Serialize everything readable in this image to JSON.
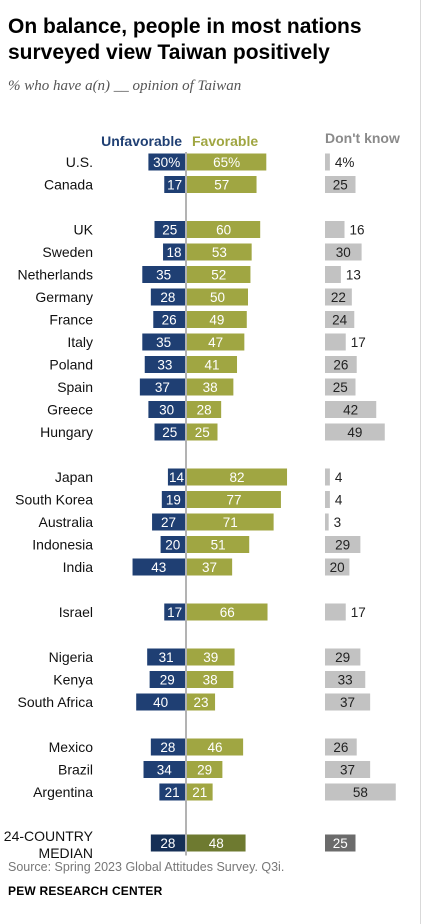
{
  "title": "On balance, people in most nations surveyed view Taiwan positively",
  "subtitle": "% who have a(n) __ opinion of Taiwan",
  "source": "Source: Spring 2023 Global Attitudes Survey. Q3i.",
  "credit": "PEW RESEARCH CENTER",
  "colors": {
    "unfavorable": "#1f3f73",
    "favorable": "#a0a642",
    "dont_know": "#c2c2c2",
    "median_unfavorable": "#152f56",
    "median_favorable": "#6e7a30",
    "median_dont_know": "#6b6b6b"
  },
  "chart_data": {
    "type": "bar",
    "series": [
      {
        "name": "Unfavorable",
        "values": [
          30,
          17,
          25,
          18,
          35,
          28,
          26,
          35,
          33,
          37,
          30,
          25,
          14,
          19,
          27,
          20,
          43,
          17,
          31,
          29,
          40,
          28,
          34,
          21,
          28
        ]
      },
      {
        "name": "Favorable",
        "values": [
          65,
          57,
          60,
          53,
          52,
          50,
          49,
          47,
          41,
          38,
          28,
          25,
          82,
          77,
          71,
          51,
          37,
          66,
          39,
          38,
          23,
          46,
          29,
          21,
          48
        ]
      },
      {
        "name": "Don't know",
        "values": [
          4,
          25,
          16,
          30,
          13,
          22,
          24,
          17,
          26,
          25,
          42,
          49,
          4,
          4,
          3,
          29,
          20,
          17,
          29,
          33,
          37,
          26,
          37,
          58,
          25
        ]
      }
    ],
    "rows": [
      {
        "label": "U.S.",
        "unf": "30%",
        "fav": "65%",
        "dk": "4%",
        "group": 0
      },
      {
        "label": "Canada",
        "unf": "17",
        "fav": "57",
        "dk": "25",
        "group": 0
      },
      {
        "label": "UK",
        "unf": "25",
        "fav": "60",
        "dk": "16",
        "group": 1
      },
      {
        "label": "Sweden",
        "unf": "18",
        "fav": "53",
        "dk": "30",
        "group": 1
      },
      {
        "label": "Netherlands",
        "unf": "35",
        "fav": "52",
        "dk": "13",
        "group": 1
      },
      {
        "label": "Germany",
        "unf": "28",
        "fav": "50",
        "dk": "22",
        "group": 1
      },
      {
        "label": "France",
        "unf": "26",
        "fav": "49",
        "dk": "24",
        "group": 1
      },
      {
        "label": "Italy",
        "unf": "35",
        "fav": "47",
        "dk": "17",
        "group": 1
      },
      {
        "label": "Poland",
        "unf": "33",
        "fav": "41",
        "dk": "26",
        "group": 1
      },
      {
        "label": "Spain",
        "unf": "37",
        "fav": "38",
        "dk": "25",
        "group": 1
      },
      {
        "label": "Greece",
        "unf": "30",
        "fav": "28",
        "dk": "42",
        "group": 1
      },
      {
        "label": "Hungary",
        "unf": "25",
        "fav": "25",
        "dk": "49",
        "group": 1
      },
      {
        "label": "Japan",
        "unf": "14",
        "fav": "82",
        "dk": "4",
        "group": 2
      },
      {
        "label": "South Korea",
        "unf": "19",
        "fav": "77",
        "dk": "4",
        "group": 2
      },
      {
        "label": "Australia",
        "unf": "27",
        "fav": "71",
        "dk": "3",
        "group": 2
      },
      {
        "label": "Indonesia",
        "unf": "20",
        "fav": "51",
        "dk": "29",
        "group": 2
      },
      {
        "label": "India",
        "unf": "43",
        "fav": "37",
        "dk": "20",
        "group": 2
      },
      {
        "label": "Israel",
        "unf": "17",
        "fav": "66",
        "dk": "17",
        "group": 3
      },
      {
        "label": "Nigeria",
        "unf": "31",
        "fav": "39",
        "dk": "29",
        "group": 4
      },
      {
        "label": "Kenya",
        "unf": "29",
        "fav": "38",
        "dk": "33",
        "group": 4
      },
      {
        "label": "South Africa",
        "unf": "40",
        "fav": "23",
        "dk": "37",
        "group": 4
      },
      {
        "label": "Mexico",
        "unf": "28",
        "fav": "46",
        "dk": "26",
        "group": 5
      },
      {
        "label": "Brazil",
        "unf": "34",
        "fav": "29",
        "dk": "37",
        "group": 5
      },
      {
        "label": "Argentina",
        "unf": "21",
        "fav": "21",
        "dk": "58",
        "group": 5
      },
      {
        "label": "24-COUNTRY MEDIAN",
        "unf": "28",
        "fav": "48",
        "dk": "25",
        "group": 6,
        "median": true
      }
    ]
  }
}
